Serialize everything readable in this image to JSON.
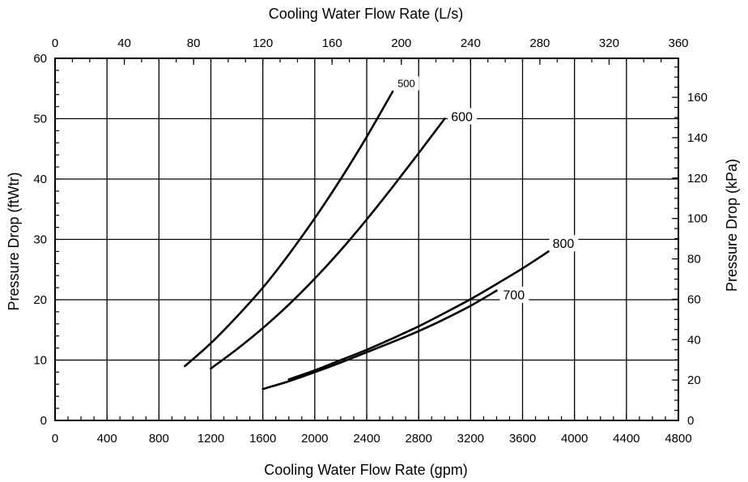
{
  "chart_data": {
    "type": "line",
    "title": "",
    "xlabel": "Cooling Water Flow Rate (gpm)",
    "ylabel": "Pressure Drop (ftWtr)",
    "x2label": "Cooling Water Flow Rate (L/s)",
    "y2label": "Pressure Drop (kPa)",
    "xlim": [
      0,
      4800
    ],
    "ylim": [
      0,
      60
    ],
    "x2lim": [
      0,
      360
    ],
    "y2lim": [
      0,
      179.3
    ],
    "x_ticks": [
      0,
      400,
      800,
      1200,
      1600,
      2000,
      2400,
      2800,
      3200,
      3600,
      4000,
      4400,
      4800
    ],
    "y_ticks": [
      0,
      10,
      20,
      30,
      40,
      50,
      60
    ],
    "x2_ticks": [
      0,
      40,
      80,
      120,
      160,
      200,
      240,
      280,
      320,
      360
    ],
    "y2_ticks": [
      0,
      20,
      40,
      60,
      80,
      100,
      120,
      140,
      160
    ],
    "grid": true,
    "legend": "inline labels",
    "series": [
      {
        "name": "500",
        "x": [
          1000,
          1200,
          1400,
          1600,
          1800,
          2000,
          2200,
          2400,
          2600
        ],
        "y": [
          9.0,
          12.8,
          17.2,
          22.0,
          27.5,
          33.5,
          40.0,
          47.0,
          54.5
        ]
      },
      {
        "name": "600",
        "x": [
          1200,
          1400,
          1600,
          1800,
          2000,
          2200,
          2400,
          2600,
          2800,
          3000
        ],
        "y": [
          8.6,
          11.8,
          15.3,
          19.2,
          23.5,
          28.2,
          33.3,
          38.7,
          44.3,
          50.0
        ]
      },
      {
        "name": "700",
        "x": [
          1600,
          1800,
          2000,
          2200,
          2400,
          2600,
          2800,
          3000,
          3200,
          3400
        ],
        "y": [
          5.2,
          6.5,
          8.0,
          9.6,
          11.3,
          13.0,
          14.8,
          16.8,
          19.0,
          21.5
        ]
      },
      {
        "name": "800",
        "x": [
          1800,
          2000,
          2200,
          2400,
          2600,
          2800,
          3000,
          3200,
          3400,
          3600,
          3800
        ],
        "y": [
          6.8,
          8.3,
          10.0,
          11.7,
          13.6,
          15.6,
          17.8,
          20.1,
          22.6,
          25.2,
          28.0
        ]
      }
    ]
  }
}
